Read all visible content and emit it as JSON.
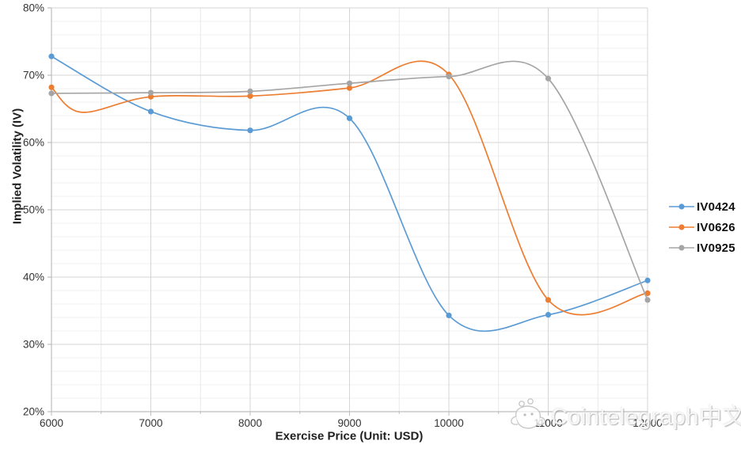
{
  "chart_data": {
    "type": "line",
    "line_style": "smooth-with-markers",
    "title": "",
    "xlabel": "Exercise Price (Unit: USD)",
    "ylabel": "Implied Volatility (IV)",
    "x": [
      6000,
      7000,
      8000,
      9000,
      10000,
      11000,
      12000
    ],
    "x_tick_labels": [
      "6000",
      "7000",
      "8000",
      "9000",
      "10000",
      "11000",
      "12000"
    ],
    "y_tick_labels": [
      "20%",
      "30%",
      "40%",
      "50%",
      "60%",
      "70%",
      "80%"
    ],
    "xlim": [
      6000,
      12000
    ],
    "ylim": [
      20,
      80
    ],
    "x_major_unit": 1000,
    "x_minor_unit": 500,
    "y_major_unit": 10,
    "y_minor_unit": 2,
    "grid": "major+minor",
    "legend_position": "right",
    "series": [
      {
        "name": "IV0424",
        "color": "#5B9BD5",
        "values": [
          72.8,
          64.6,
          61.8,
          63.6,
          34.3,
          34.4,
          39.5
        ]
      },
      {
        "name": "IV0626",
        "color": "#ED7D31",
        "values": [
          68.2,
          66.8,
          66.9,
          68.1,
          70.1,
          36.6,
          37.6
        ],
        "visible_spline_dip": {
          "x": 6300,
          "y": 64.5
        }
      },
      {
        "name": "IV0925",
        "color": "#A5A5A5",
        "values": [
          67.3,
          67.4,
          67.6,
          68.8,
          69.8,
          69.5,
          36.6
        ]
      }
    ]
  },
  "watermark": {
    "text": "Cointelegraph中文",
    "logo": "cointelegraph-mascot"
  }
}
